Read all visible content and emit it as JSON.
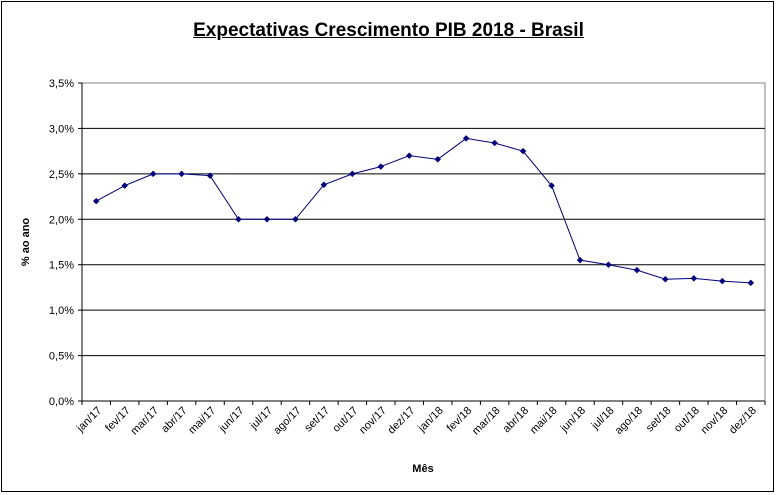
{
  "chart_data": {
    "type": "line",
    "title": "Expectativas Crescimento PIB 2018 - Brasil",
    "xlabel": "Mês",
    "ylabel": "% ao ano",
    "ylim": [
      0,
      3.5
    ],
    "ytick_values": [
      0,
      0.5,
      1.0,
      1.5,
      2.0,
      2.5,
      3.0,
      3.5
    ],
    "ytick_labels": [
      "0,0%",
      "0,5%",
      "1,0%",
      "1,5%",
      "2,0%",
      "2,5%",
      "3,0%",
      "3,5%"
    ],
    "grid": true,
    "categories": [
      "jan/17",
      "fev/17",
      "mar/17",
      "abr/17",
      "mai/17",
      "jun/17",
      "jul/17",
      "ago/17",
      "set/17",
      "out/17",
      "nov/17",
      "dez/17",
      "jan/18",
      "fev/18",
      "mar/18",
      "abr/18",
      "mai/18",
      "jun/18",
      "jul/18",
      "ago/18",
      "set/18",
      "out/18",
      "nov/18",
      "dez/18"
    ],
    "points": [
      {
        "x": 0,
        "y": 2.2
      },
      {
        "x": 1,
        "y": 2.37
      },
      {
        "x": 2,
        "y": 2.5
      },
      {
        "x": 3,
        "y": 2.5
      },
      {
        "x": 4,
        "y": 2.48
      },
      {
        "x": 5,
        "y": 2.0
      },
      {
        "x": 6,
        "y": 2.0
      },
      {
        "x": 7,
        "y": 2.0
      },
      {
        "x": 8,
        "y": 2.38
      },
      {
        "x": 9,
        "y": 2.5
      },
      {
        "x": 10,
        "y": 2.58
      },
      {
        "x": 11,
        "y": 2.7
      },
      {
        "x": 12,
        "y": 2.66
      },
      {
        "x": 13,
        "y": 2.89
      },
      {
        "x": 14,
        "y": 2.84
      },
      {
        "x": 15,
        "y": 2.75
      },
      {
        "x": 16,
        "y": 2.37
      },
      {
        "x": 17,
        "y": 1.55
      },
      {
        "x": 18,
        "y": 1.5
      },
      {
        "x": 19,
        "y": 1.44
      },
      {
        "x": 20,
        "y": 1.34
      },
      {
        "x": 21,
        "y": 1.35
      },
      {
        "x": 22,
        "y": 1.32
      },
      {
        "x": 23,
        "y": 1.3
      }
    ],
    "line_color": "#000080",
    "marker_color": "#000080"
  }
}
